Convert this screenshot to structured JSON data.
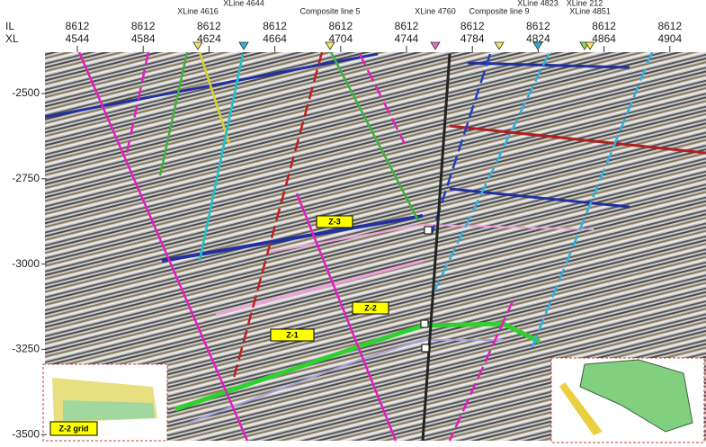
{
  "axis_titles": [
    "IL",
    "XL"
  ],
  "columns": [
    {
      "il": "8612",
      "xl": "4544"
    },
    {
      "il": "8612",
      "xl": "4584"
    },
    {
      "il": "8612",
      "xl": "4624"
    },
    {
      "il": "8612",
      "xl": "4664"
    },
    {
      "il": "8612",
      "xl": "4704"
    },
    {
      "il": "8612",
      "xl": "4744"
    },
    {
      "il": "8612",
      "xl": "4784"
    },
    {
      "il": "8612",
      "xl": "4824"
    },
    {
      "il": "8612",
      "xl": "4864"
    },
    {
      "il": "8612",
      "xl": "4904"
    }
  ],
  "depths": [
    "-2500",
    "-2750",
    "-3000",
    "-3250",
    "-3500"
  ],
  "markers": [
    {
      "label": "XLine 4616",
      "color": "#f5e56b"
    },
    {
      "label": "XLine 4644",
      "color": "#28b4d8"
    },
    {
      "label": "Composite line 5",
      "color": "#f5e56b"
    },
    {
      "label": "XLine 4760",
      "color": "#e070c8"
    },
    {
      "label": "Composite line 9",
      "color": "#f5e56b"
    },
    {
      "label": "XLine 4823",
      "color": "#28b4d8"
    },
    {
      "label": "XLine 212",
      "color": "#8cd848"
    },
    {
      "label": "XLine 4851",
      "color": "#f5e56b"
    }
  ],
  "horizon_labels": [
    "Z-3",
    "Z-2",
    "Z-1"
  ],
  "inset_label": "Z-2 grid"
}
